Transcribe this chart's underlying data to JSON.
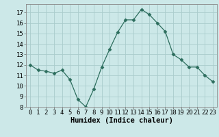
{
  "x": [
    0,
    1,
    2,
    3,
    4,
    5,
    6,
    7,
    8,
    9,
    10,
    11,
    12,
    13,
    14,
    15,
    16,
    17,
    18,
    19,
    20,
    21,
    22,
    23
  ],
  "y": [
    12.0,
    11.5,
    11.4,
    11.2,
    11.5,
    10.6,
    8.7,
    8.0,
    9.7,
    11.8,
    13.5,
    15.1,
    16.3,
    16.3,
    17.3,
    16.8,
    16.0,
    15.2,
    13.0,
    12.5,
    11.8,
    11.8,
    11.0,
    10.4
  ],
  "line_color": "#2d6e5e",
  "marker": "D",
  "marker_size": 2.5,
  "bg_color": "#cce8e8",
  "grid_color": "#aacccc",
  "grid_color_minor": "#ddf0f0",
  "xlabel": "Humidex (Indice chaleur)",
  "ylim": [
    8,
    17.8
  ],
  "xlim": [
    -0.5,
    23.5
  ],
  "yticks": [
    8,
    9,
    10,
    11,
    12,
    13,
    14,
    15,
    16,
    17
  ],
  "xticks": [
    0,
    1,
    2,
    3,
    4,
    5,
    6,
    7,
    8,
    9,
    10,
    11,
    12,
    13,
    14,
    15,
    16,
    17,
    18,
    19,
    20,
    21,
    22,
    23
  ],
  "tick_label_size": 6.5,
  "xlabel_size": 7.5,
  "font_family": "monospace"
}
